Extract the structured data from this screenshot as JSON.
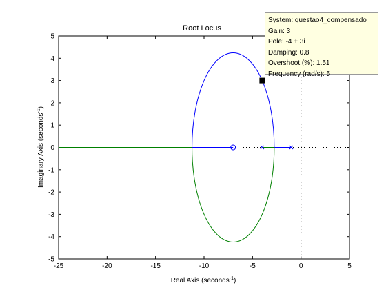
{
  "chart_data": {
    "type": "line",
    "title": "Root Locus",
    "xlabel": "Real Axis (seconds",
    "ylabel": "Imaginary Axis (seconds",
    "label_superscript": "-1",
    "label_suffix": ")",
    "xlim": [
      -25,
      5
    ],
    "ylim": [
      -5,
      5
    ],
    "xticks": [
      -25,
      -20,
      -15,
      -10,
      -5,
      0,
      5
    ],
    "yticks": [
      -5,
      -4,
      -3,
      -2,
      -1,
      0,
      1,
      2,
      3,
      4,
      5
    ],
    "grid": false,
    "colors": {
      "upper_branch": "#0000ff",
      "lower_branch": "#008000",
      "markers": "#0000ff",
      "axes": "#000000",
      "reference_lines": "#000000"
    },
    "locus_circle": {
      "center": [
        -7,
        0
      ],
      "radius": 4.24
    },
    "series": [
      {
        "color": "#0000ff",
        "points": [
          [
            -1,
            0
          ],
          [
            -2.76,
            0
          ],
          [
            -2.9,
            1.2
          ],
          [
            -3.4,
            2.35
          ],
          [
            -4,
            3
          ],
          [
            -5.5,
            3.97
          ],
          [
            -7,
            4.24
          ],
          [
            -8.5,
            3.97
          ],
          [
            -10,
            3
          ],
          [
            -10.9,
            1.5
          ],
          [
            -11.24,
            0
          ],
          [
            -7,
            0
          ]
        ]
      },
      {
        "color": "#008000",
        "points": [
          [
            -4,
            0
          ],
          [
            -2.76,
            0
          ],
          [
            -2.9,
            -1.2
          ],
          [
            -3.4,
            -2.35
          ],
          [
            -4,
            -3
          ],
          [
            -5.5,
            -3.97
          ],
          [
            -7,
            -4.24
          ],
          [
            -8.5,
            -3.97
          ],
          [
            -10,
            -3
          ],
          [
            -10.9,
            -1.5
          ],
          [
            -11.24,
            0
          ],
          [
            -25,
            0
          ]
        ]
      }
    ],
    "poles": [
      [
        -1,
        0
      ],
      [
        -4,
        0
      ]
    ],
    "zeros": [
      [
        -7,
        0
      ]
    ],
    "selected_point": [
      -4,
      3
    ],
    "datatip": {
      "system": "System: questao4_compensado",
      "gain": "Gain: 3",
      "pole": "Pole: -4 + 3i",
      "damping": "Damping: 0.8",
      "overshoot": "Overshoot (%): 1.51",
      "frequency": "Frequency (rad/s): 5"
    }
  }
}
